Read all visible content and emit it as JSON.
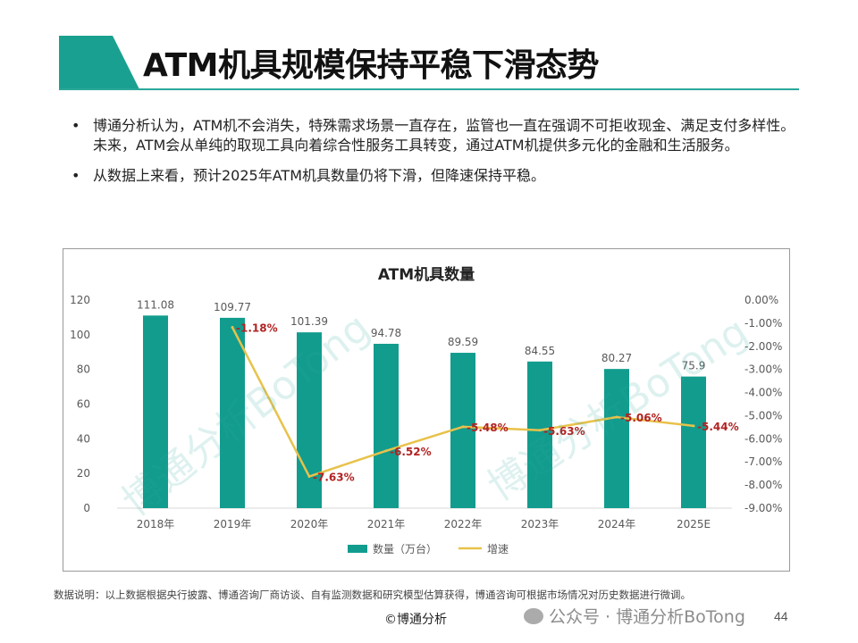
{
  "header": {
    "title": "ATM机具规模保持平稳下滑态势",
    "accent_color": "#1aa090"
  },
  "bullets": [
    "博通分析认为，ATM机不会消失，特殊需求场景一直存在，监管也一直在强调不可拒收现金、满足支付多样性。未来，ATM会从单纯的取现工具向着综合性服务工具转变，通过ATM机提供多元化的金融和生活服务。",
    "从数据上来看，预计2025年ATM机具数量仍将下滑，但降速保持平稳。"
  ],
  "bullet_symbol": "•",
  "chart_data": {
    "type": "bar",
    "title": "ATM机具数量",
    "categories": [
      "2018年",
      "2019年",
      "2020年",
      "2021年",
      "2022年",
      "2023年",
      "2024年",
      "2025E"
    ],
    "series": [
      {
        "name": "数量（万台）",
        "type": "bar",
        "axis": "left",
        "color": "#129c8e",
        "values": [
          111.08,
          109.77,
          101.39,
          94.78,
          89.59,
          84.55,
          80.27,
          75.9
        ],
        "labels": [
          "111.08",
          "109.77",
          "101.39",
          "94.78",
          "89.59",
          "84.55",
          "80.27",
          "75.9"
        ]
      },
      {
        "name": "增速",
        "type": "line",
        "axis": "right",
        "color": "#e8c24a",
        "label_color": "#b22222",
        "values": [
          null,
          -1.18,
          -7.63,
          -6.52,
          -5.48,
          -5.63,
          -5.06,
          -5.44
        ],
        "labels": [
          null,
          "-1.18%",
          "-7.63%",
          "-6.52%",
          "-5.48%",
          "-5.63%",
          "-5.06%",
          "-5.44%"
        ]
      }
    ],
    "y_left": {
      "min": 0,
      "max": 120,
      "ticks": [
        "0",
        "20",
        "40",
        "60",
        "80",
        "100",
        "120"
      ]
    },
    "y_right": {
      "min": -9,
      "max": 0,
      "ticks": [
        "0.00%",
        "-1.00%",
        "-2.00%",
        "-3.00%",
        "-4.00%",
        "-5.00%",
        "-6.00%",
        "-7.00%",
        "-8.00%",
        "-9.00%"
      ]
    },
    "legend_position": "bottom",
    "grid": false
  },
  "watermark": "博通分析BoTong",
  "footer": {
    "note": "数据说明：以上数据根据央行披露、博通咨询厂商访谈、自有监测数据和研究模型估算获得，博通咨询可根据市场情况对历史数据进行微调。",
    "copyright": "©博通分析",
    "wechat": "公众号 · 博通分析BoTong",
    "page_number": "44"
  }
}
